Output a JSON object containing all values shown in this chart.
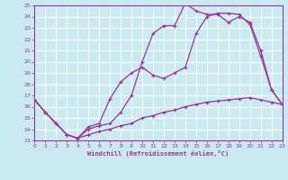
{
  "bg_color": "#c8eaf0",
  "grid_color": "#ffffff",
  "line_color": "#993399",
  "marker": "+",
  "xlabel": "Windchill (Refroidissement éolien,°C)",
  "xlim": [
    0,
    23
  ],
  "ylim": [
    13,
    25
  ],
  "xticks": [
    0,
    1,
    2,
    3,
    4,
    5,
    6,
    7,
    8,
    9,
    10,
    11,
    12,
    13,
    14,
    15,
    16,
    17,
    18,
    19,
    20,
    21,
    22,
    23
  ],
  "yticks": [
    13,
    14,
    15,
    16,
    17,
    18,
    19,
    20,
    21,
    22,
    23,
    24,
    25
  ],
  "line1_x": [
    0,
    1,
    2,
    3,
    4,
    5,
    6,
    7,
    8,
    9,
    10,
    11,
    12,
    13,
    14,
    15,
    16,
    17,
    18,
    19,
    20,
    21,
    22,
    23
  ],
  "line1_y": [
    16.6,
    15.5,
    14.5,
    13.5,
    13.2,
    14.0,
    14.3,
    14.5,
    15.5,
    17.0,
    20.0,
    22.5,
    23.2,
    23.2,
    25.2,
    24.5,
    24.2,
    24.2,
    23.5,
    24.0,
    23.5,
    21.0,
    17.5,
    16.2
  ],
  "line2_x": [
    0,
    1,
    2,
    3,
    4,
    5,
    6,
    7,
    8,
    9,
    10,
    11,
    12,
    13,
    14,
    15,
    16,
    17,
    18,
    19,
    20,
    21,
    22,
    23
  ],
  "line2_y": [
    16.6,
    15.5,
    14.5,
    13.5,
    13.2,
    14.2,
    14.5,
    16.7,
    18.2,
    19.0,
    19.5,
    18.8,
    18.5,
    19.0,
    19.5,
    22.5,
    24.0,
    24.3,
    24.3,
    24.2,
    23.3,
    20.5,
    17.5,
    16.2
  ],
  "line3_x": [
    0,
    1,
    2,
    3,
    4,
    5,
    6,
    7,
    8,
    9,
    10,
    11,
    12,
    13,
    14,
    15,
    16,
    17,
    18,
    19,
    20,
    21,
    22,
    23
  ],
  "line3_y": [
    16.6,
    15.5,
    14.5,
    13.5,
    13.2,
    13.5,
    13.8,
    14.0,
    14.3,
    14.5,
    15.0,
    15.2,
    15.5,
    15.7,
    16.0,
    16.2,
    16.4,
    16.5,
    16.6,
    16.7,
    16.8,
    16.6,
    16.4,
    16.2
  ]
}
